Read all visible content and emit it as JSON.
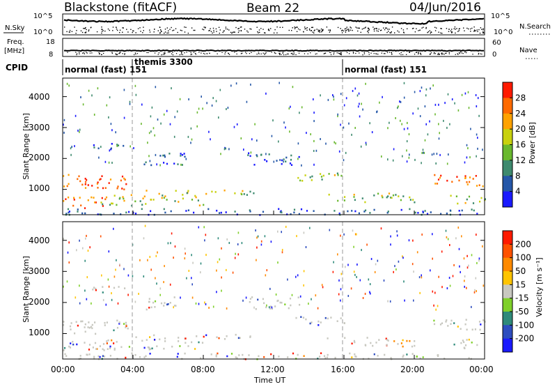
{
  "header": {
    "station": "Blackstone (fitACF)",
    "beam": "Beam 22",
    "date": "04/Jun/2016"
  },
  "strip_panels": {
    "nsky_label": "N.Sky",
    "nsky_ticks": [
      "10^5",
      "10^0"
    ],
    "nsearch_label": "N.Search",
    "nsearch_ticks": [
      "10^5",
      "10^0"
    ],
    "freq_label_line1": "Freq.",
    "freq_label_line2": "[MHz]",
    "freq_ticks": [
      "18",
      "8"
    ],
    "nave_label": "Nave",
    "nave_ticks": [
      "60",
      "0"
    ],
    "cpid_label": "CPID"
  },
  "cpid_modes": [
    {
      "label": "normal (fast) 151",
      "start_hour": 0
    },
    {
      "label": "themis 3300",
      "start_hour": 4
    },
    {
      "label": "normal (fast) 151",
      "start_hour": 16
    }
  ],
  "axes": {
    "ylabel": "Slant Range [km]",
    "y_ticks": [
      "1000",
      "2000",
      "3000",
      "4000"
    ],
    "x_ticks": [
      "00:00",
      "04:00",
      "08:00",
      "12:00",
      "16:00",
      "20:00",
      "00:00"
    ],
    "xlabel": "Time UT"
  },
  "power_colorbar": {
    "label": "Power [dB]",
    "ticks": [
      "4",
      "8",
      "12",
      "16",
      "20",
      "24",
      "28"
    ],
    "colors": [
      "#1a1aff",
      "#2557a8",
      "#3e8a6e",
      "#69b82e",
      "#c8d10e",
      "#ffa200",
      "#ff6a00",
      "#ff1a00"
    ]
  },
  "velocity_colorbar": {
    "label": "Velocity [m s⁻¹]",
    "ticks": [
      "200",
      "100",
      "50",
      "15",
      "-15",
      "-50",
      "-100",
      "-200"
    ],
    "colors": [
      "#1a1aff",
      "#2d4dbf",
      "#2e8a7a",
      "#7fd02a",
      "#c8c8c0",
      "#ffc400",
      "#ff8a00",
      "#ff5200",
      "#ff1a00"
    ]
  },
  "chart_data": {
    "type": "heatmap",
    "x_unit": "hours UT",
    "xlim": [
      0,
      24
    ],
    "ylim": [
      180,
      4600
    ],
    "power_features": [
      {
        "t0": 0.0,
        "t1": 3.8,
        "r0": 1000,
        "r1": 1500,
        "level": "high"
      },
      {
        "t0": 0.0,
        "t1": 2.5,
        "r0": 420,
        "r1": 800,
        "level": "high"
      },
      {
        "t0": 2.0,
        "t1": 8.0,
        "r0": 500,
        "r1": 850,
        "level": "medium"
      },
      {
        "t0": 4.0,
        "t1": 11.0,
        "r0": 850,
        "r1": 1000,
        "level": "medium"
      },
      {
        "t0": 1.5,
        "t1": 3.5,
        "r0": 2300,
        "r1": 2550,
        "level": "low"
      },
      {
        "t0": 4.5,
        "t1": 7.0,
        "r0": 1800,
        "r1": 2200,
        "level": "low"
      },
      {
        "t0": 10.5,
        "t1": 13.5,
        "r0": 1800,
        "r1": 2200,
        "level": "low"
      },
      {
        "t0": 13.0,
        "t1": 16.0,
        "r0": 1300,
        "r1": 1600,
        "level": "medium"
      },
      {
        "t0": 15.0,
        "t1": 20.0,
        "r0": 600,
        "r1": 900,
        "level": "medium"
      },
      {
        "t0": 21.0,
        "t1": 24.0,
        "r0": 1100,
        "r1": 1500,
        "level": "high"
      },
      {
        "t0": 22.0,
        "t1": 24.0,
        "r0": 550,
        "r1": 850,
        "level": "medium"
      },
      {
        "t0": 0.0,
        "t1": 24.0,
        "r0": 200,
        "r1": 400,
        "level": "low"
      }
    ]
  }
}
